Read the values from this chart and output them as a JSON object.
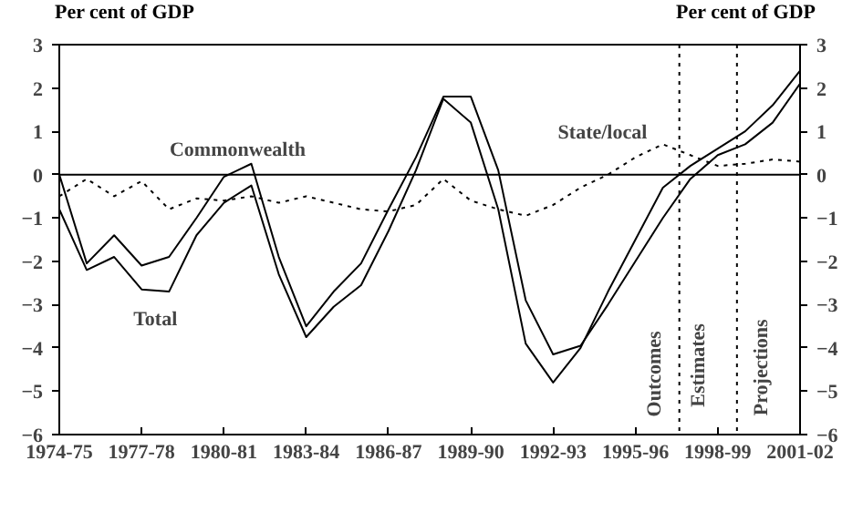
{
  "chart_data": {
    "type": "line",
    "ylabel": "Per cent of GDP",
    "y2label": "Per cent of GDP",
    "categories": [
      "1974-75",
      null,
      null,
      "1977-78",
      null,
      null,
      "1980-81",
      null,
      null,
      "1983-84",
      null,
      null,
      "1986-87",
      null,
      null,
      "1989-90",
      null,
      null,
      "1992-93",
      null,
      null,
      "1995-96",
      null,
      null,
      "1998-99",
      null,
      null,
      "2001-02"
    ],
    "series": [
      {
        "color": "#000000",
        "line_style": "solid",
        "values": [
          0,
          -2.05,
          -1.4,
          -2.1,
          -1.9,
          -1.0,
          -0.05,
          0.25,
          -1.9,
          -3.5,
          -2.7,
          -2.05,
          -0.8,
          0.4,
          1.8,
          1.8,
          0.1,
          -2.9,
          -4.15,
          -3.95,
          -3.0,
          -2.0,
          -1.0,
          -0.1,
          0.45,
          0.7,
          1.2,
          2.1
        ]
      },
      {
        "color": "#000000",
        "line_style": "solid",
        "values": [
          -0.8,
          -2.2,
          -1.9,
          -2.65,
          -2.7,
          -1.4,
          -0.65,
          -0.25,
          -2.3,
          -3.75,
          -3.05,
          -2.55,
          -1.3,
          0.1,
          1.75,
          1.2,
          -0.8,
          -3.9,
          -4.8,
          -4.0,
          -2.7,
          -1.5,
          -0.3,
          0.2,
          0.6,
          1.0,
          1.6,
          2.4
        ]
      },
      {
        "color": "#000000",
        "line_style": "dotted",
        "values": [
          -0.5,
          -0.1,
          -0.5,
          -0.15,
          -0.8,
          -0.55,
          -0.6,
          -0.5,
          -0.65,
          -0.5,
          -0.65,
          -0.8,
          -0.85,
          -0.7,
          -0.1,
          -0.6,
          -0.8,
          -0.95,
          -0.7,
          -0.3,
          0.0,
          0.4,
          0.7,
          0.45,
          0.2,
          0.25,
          0.35,
          0.3
        ]
      }
    ],
    "ylim": [
      -6,
      3
    ],
    "yticks": [
      -6,
      -5,
      -4,
      -3,
      -2,
      -1,
      0,
      1,
      2,
      3
    ],
    "y2lim": [
      -6,
      3
    ],
    "y2ticks": [
      -6,
      -5,
      -4,
      -3,
      -2,
      -1,
      0,
      1,
      2,
      3
    ],
    "ref_lines": [
      {
        "axis": "y",
        "value": 0,
        "line_style": "solid"
      }
    ],
    "annotations": [
      "Commonwealth",
      "Total",
      "State/local",
      "Outcomes",
      "Estimates",
      "Projections"
    ],
    "grid": false,
    "marker": "none"
  }
}
